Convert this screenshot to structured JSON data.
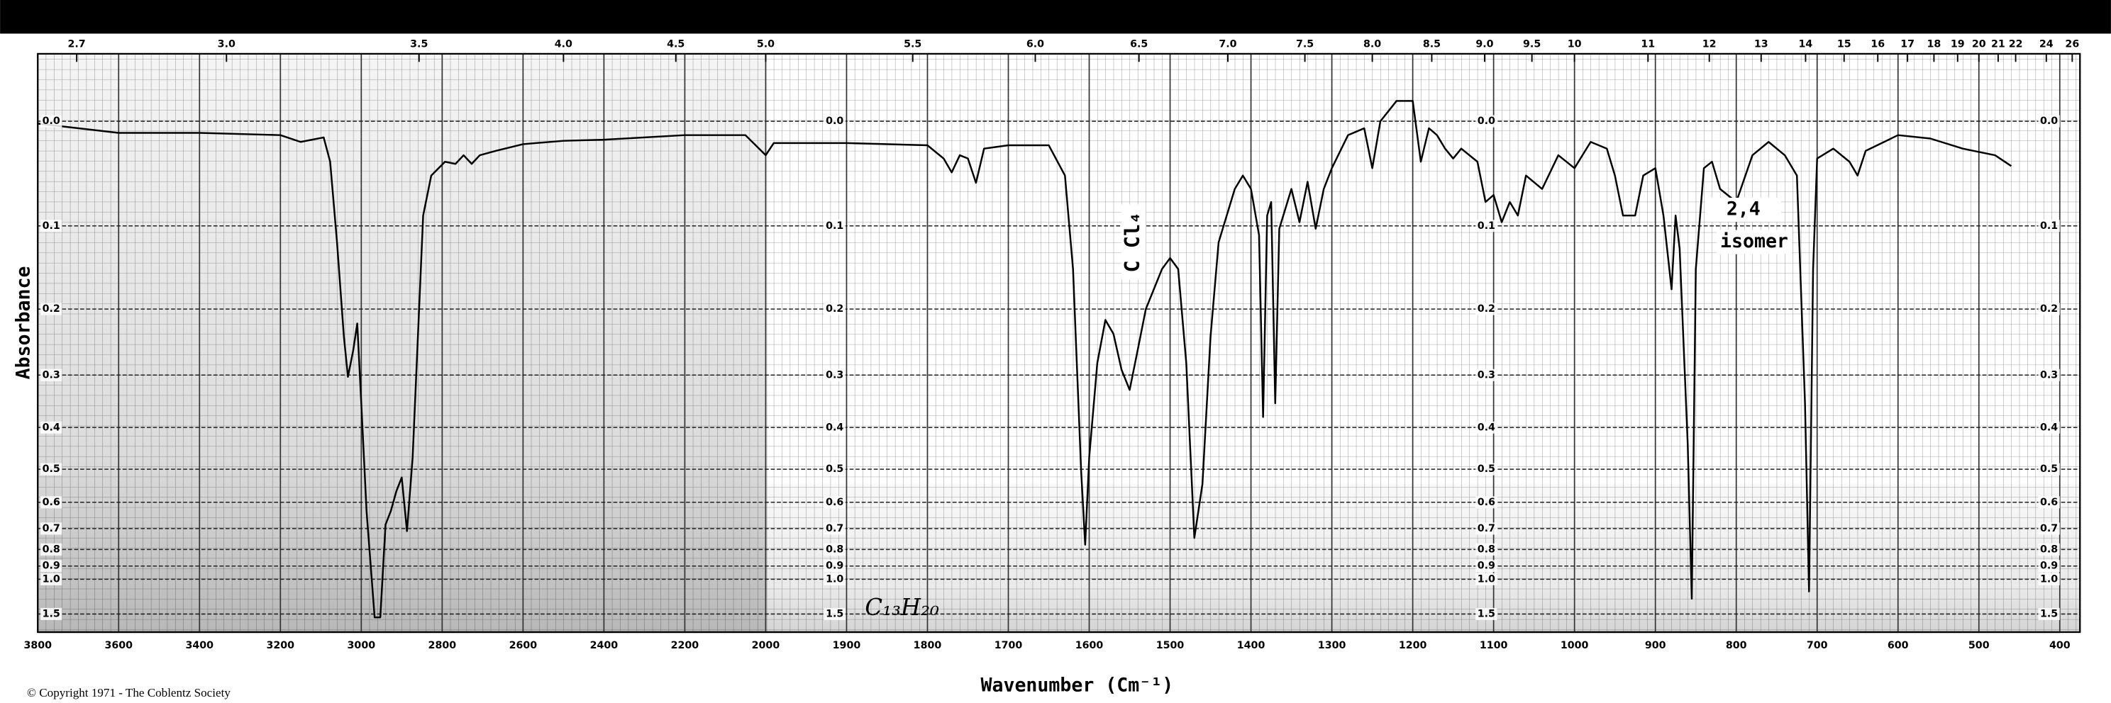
{
  "chart_data": {
    "type": "line",
    "ylabel": "Absorbance",
    "xlabel": "Wavenumber (Cm⁻¹)",
    "source": "© Copyright 1971 - The Coblentz Society",
    "annotations": [
      "C Cl₄",
      "2,4",
      "isomer",
      "C₁₃H₂₀"
    ],
    "yscale": "transmittance",
    "color": "#000000",
    "grid": true,
    "xlim": [
      3800,
      400
    ],
    "xticks": [
      3800,
      3600,
      3400,
      3200,
      3000,
      2800,
      2600,
      2400,
      2200,
      2000,
      1900,
      1800,
      1700,
      1600,
      1500,
      1400,
      1300,
      1200,
      1100,
      1000,
      900,
      800,
      700,
      600,
      500,
      400
    ],
    "x2ticks": [
      2.7,
      {
        "value": 3,
        "label": "3.0"
      },
      3.5,
      {
        "value": 4,
        "label": "4.0"
      },
      4.5,
      {
        "value": 5,
        "label": "5.0"
      },
      5.5,
      {
        "value": 6,
        "label": "6.0"
      },
      6.5,
      {
        "value": 7,
        "label": "7.0"
      },
      7.5,
      {
        "value": 8,
        "label": "8.0"
      },
      8.5,
      {
        "value": 9,
        "label": "9.0"
      },
      9.5,
      10,
      11,
      12,
      13,
      14,
      15,
      16,
      17,
      18,
      19,
      20,
      21,
      22,
      24,
      26
    ],
    "ylim": [
      -0.05,
      1.6
    ],
    "yticks": [
      {
        "value": 0,
        "label": "0.0"
      },
      0.1,
      0.2,
      0.3,
      0.4,
      0.5,
      0.6,
      0.7,
      0.8,
      0.9,
      {
        "value": 1,
        "label": "1.0"
      },
      1.5
    ],
    "x": [
      3800,
      3600,
      3400,
      3200,
      3150,
      3093,
      3077,
      3060,
      3043,
      3033,
      3020,
      3010,
      3000,
      2987,
      2967,
      2953,
      2940,
      2927,
      2913,
      2900,
      2887,
      2873,
      2860,
      2847,
      2827,
      2793,
      2767,
      2747,
      2727,
      2707,
      2667,
      2600,
      2500,
      2400,
      2200,
      2050,
      2000,
      1990,
      1900,
      1800,
      1780,
      1770,
      1760,
      1750,
      1740,
      1730,
      1700,
      1650,
      1630,
      1620,
      1610,
      1605,
      1600,
      1590,
      1580,
      1570,
      1560,
      1550,
      1540,
      1530,
      1510,
      1500,
      1490,
      1480,
      1470,
      1460,
      1450,
      1440,
      1420,
      1410,
      1400,
      1390,
      1385,
      1380,
      1375,
      1370,
      1365,
      1350,
      1340,
      1330,
      1320,
      1310,
      1300,
      1280,
      1260,
      1250,
      1240,
      1220,
      1200,
      1190,
      1180,
      1170,
      1160,
      1150,
      1140,
      1120,
      1110,
      1100,
      1090,
      1080,
      1070,
      1060,
      1040,
      1020,
      1000,
      980,
      960,
      950,
      940,
      925,
      915,
      900,
      890,
      880,
      875,
      870,
      860,
      855,
      850,
      840,
      830,
      820,
      800,
      780,
      760,
      740,
      725,
      715,
      710,
      705,
      700,
      680,
      660,
      650,
      640,
      600,
      560,
      520,
      480,
      460
    ],
    "values": [
      0.002,
      0.01,
      0.01,
      0.012,
      0.018,
      0.014,
      0.036,
      0.118,
      0.239,
      0.303,
      0.26,
      0.22,
      0.351,
      0.631,
      1.6,
      1.6,
      0.683,
      0.631,
      0.563,
      0.523,
      0.711,
      0.469,
      0.239,
      0.089,
      0.049,
      0.036,
      0.038,
      0.03,
      0.038,
      0.03,
      0.026,
      0.02,
      0.017,
      0.016,
      0.012,
      0.012,
      0.03,
      0.019,
      0.019,
      0.021,
      0.033,
      0.046,
      0.03,
      0.033,
      0.056,
      0.024,
      0.021,
      0.021,
      0.049,
      0.149,
      0.504,
      0.775,
      0.469,
      0.28,
      0.215,
      0.235,
      0.291,
      0.326,
      0.259,
      0.2,
      0.149,
      0.136,
      0.149,
      0.28,
      0.742,
      0.542,
      0.239,
      0.118,
      0.062,
      0.049,
      0.062,
      0.11,
      0.378,
      0.089,
      0.075,
      0.351,
      0.103,
      0.062,
      0.096,
      0.055,
      0.103,
      0.062,
      0.042,
      0.012,
      0.006,
      0.042,
      0,
      -0.017,
      -0.017,
      0.036,
      0.006,
      0.012,
      0.024,
      0.033,
      0.024,
      0.036,
      0.075,
      0.068,
      0.096,
      0.075,
      0.089,
      0.049,
      0.062,
      0.03,
      0.042,
      0.018,
      0.024,
      0.049,
      0.089,
      0.089,
      0.049,
      0.042,
      0.089,
      0.174,
      0.089,
      0.125,
      0.437,
      1.21,
      0.149,
      0.042,
      0.036,
      0.062,
      0.075,
      0.03,
      0.018,
      0.03,
      0.049,
      0.351,
      1.12,
      0.149,
      0.033,
      0.024,
      0.036,
      0.049,
      0.026,
      0.012,
      0.015,
      0.024,
      0.03,
      0.04
    ]
  }
}
